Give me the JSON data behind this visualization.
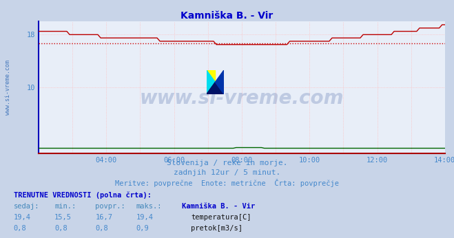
{
  "title": "Kamniška B. - Vir",
  "title_color": "#0000cc",
  "title_fontsize": 10,
  "bg_color": "#c8d4e8",
  "plot_bg_color": "#e8eef8",
  "x_end": 144,
  "x_tick_labels": [
    "04:00",
    "06:00",
    "08:00",
    "10:00",
    "12:00",
    "14:00"
  ],
  "x_tick_positions": [
    24,
    48,
    72,
    96,
    120,
    144
  ],
  "y_min": 0,
  "y_max": 20,
  "y_ticks": [
    10,
    18
  ],
  "temp_color": "#bb0000",
  "pretok_color": "#006600",
  "avg_line_color": "#cc0000",
  "avg_line_value": 16.7,
  "watermark_text": "www.si-vreme.com",
  "watermark_color": "#1a3a8a",
  "watermark_alpha": 0.2,
  "ylabel_text": "www.si-vreme.com",
  "ylabel_color": "#4477bb",
  "ylabel_fontsize": 6,
  "subtitle1": "Slovenija / reke in morje.",
  "subtitle2": "zadnjih 12ur / 5 minut.",
  "subtitle3": "Meritve: povprečne  Enote: metrične  Črta: povprečje",
  "subtitle_color": "#4488cc",
  "subtitle_fontsize": 8,
  "table_header": "TRENUTNE VREDNOSTI (polna črta):",
  "table_cols": [
    "sedaj:",
    "min.:",
    "povpr.:",
    "maks.:",
    "Kamniška B. - Vir"
  ],
  "table_temp": [
    "19,4",
    "15,5",
    "16,7",
    "19,4"
  ],
  "table_pretok": [
    "0,8",
    "0,8",
    "0,8",
    "0,9"
  ],
  "legend_temp": "temperatura[C]",
  "legend_pretok": "pretok[m3/s]"
}
